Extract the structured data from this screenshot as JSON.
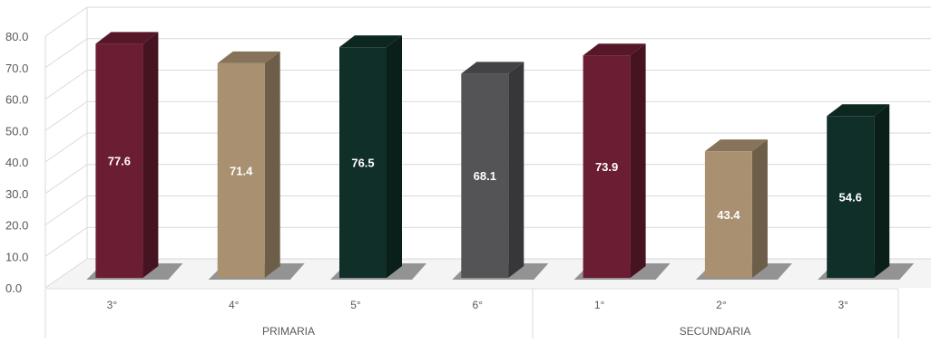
{
  "chart_data": {
    "type": "bar",
    "style": "3d-column",
    "title": "",
    "xlabel": "",
    "ylabel": "",
    "ylim": [
      0,
      80
    ],
    "yticks": [
      "0.0",
      "10.0",
      "20.0",
      "30.0",
      "40.0",
      "50.0",
      "60.0",
      "70.0",
      "80.0"
    ],
    "grid": true,
    "legend": "none",
    "groups": [
      {
        "label": "PRIMARIA",
        "categories": [
          "3°",
          "4°",
          "5°",
          "6°"
        ]
      },
      {
        "label": "SECUNDARIA",
        "categories": [
          "1°",
          "2°",
          "3°"
        ]
      }
    ],
    "categories": [
      "3°",
      "4°",
      "5°",
      "6°",
      "1°",
      "2°",
      "3°"
    ],
    "values": [
      77.6,
      71.4,
      76.5,
      68.1,
      73.9,
      43.4,
      54.6
    ],
    "value_labels": [
      "77.6",
      "71.4",
      "76.5",
      "68.1",
      "73.9",
      "43.4",
      "54.6"
    ],
    "colors": [
      "#6b1d33",
      "#a89070",
      "#0f2f28",
      "#545457",
      "#6b1d33",
      "#a89070",
      "#0f2f28"
    ]
  }
}
